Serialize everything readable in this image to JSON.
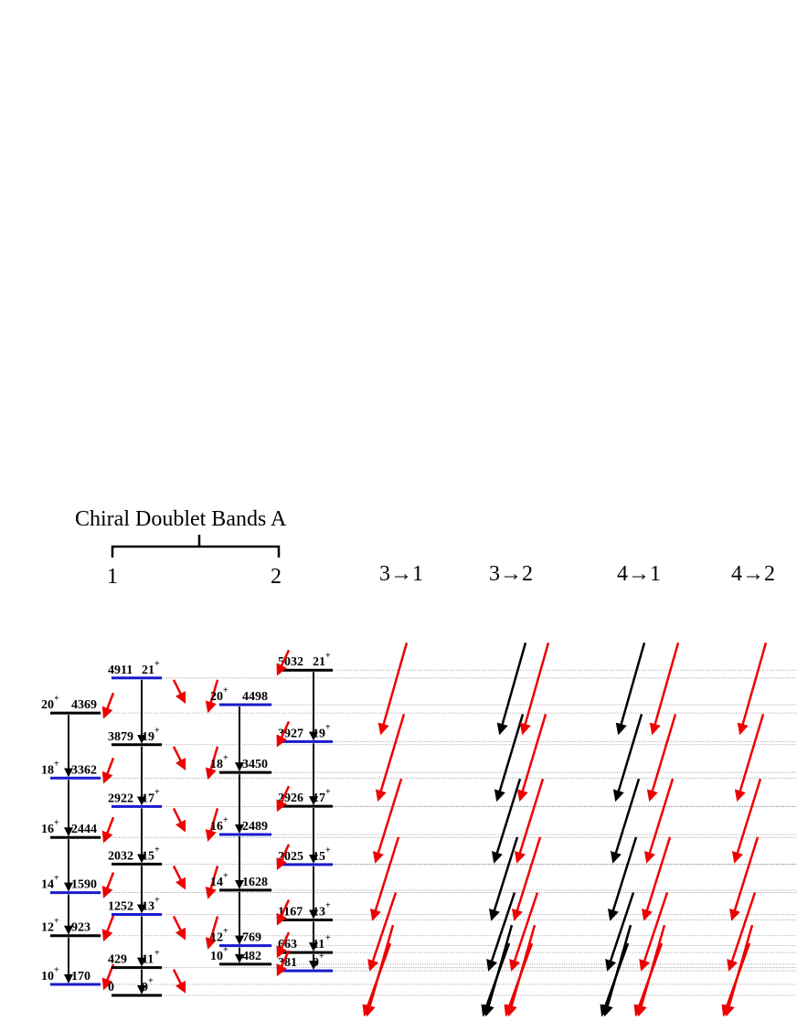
{
  "title": "Chiral Doublet Bands  A",
  "band_labels": [
    "1",
    "2"
  ],
  "transition_headers": [
    "3→1",
    "3→2",
    "4→1",
    "4→2"
  ],
  "bands": [
    {
      "levels": [
        {
          "spin": "20",
          "parity": "+",
          "energy": "4369"
        },
        {
          "spin": "18",
          "parity": "+",
          "energy": "3362"
        },
        {
          "spin": "16",
          "parity": "+",
          "energy": "2444"
        },
        {
          "spin": "14",
          "parity": "+",
          "energy": "1590"
        },
        {
          "spin": "12",
          "parity": "+",
          "energy": "923"
        },
        {
          "spin": "10",
          "parity": "+",
          "energy": "170"
        }
      ]
    },
    {
      "levels": [
        {
          "spin": "21",
          "parity": "+",
          "energy": "4911"
        },
        {
          "spin": "19",
          "parity": "+",
          "energy": "3879"
        },
        {
          "spin": "17",
          "parity": "+",
          "energy": "2922"
        },
        {
          "spin": "15",
          "parity": "+",
          "energy": "2032"
        },
        {
          "spin": "13",
          "parity": "+",
          "energy": "1252"
        },
        {
          "spin": "11",
          "parity": "+",
          "energy": "429"
        },
        {
          "spin": "9",
          "parity": "+",
          "energy": "0"
        }
      ]
    },
    {
      "levels": [
        {
          "spin": "20",
          "parity": "+",
          "energy": "4498"
        },
        {
          "spin": "18",
          "parity": "+",
          "energy": "3450"
        },
        {
          "spin": "16",
          "parity": "+",
          "energy": "2489"
        },
        {
          "spin": "14",
          "parity": "+",
          "energy": "1628"
        },
        {
          "spin": "12",
          "parity": "+",
          "energy": "769"
        },
        {
          "spin": "10",
          "parity": "+",
          "energy": "482"
        }
      ]
    },
    {
      "levels": [
        {
          "spin": "21",
          "parity": "+",
          "energy": "5032"
        },
        {
          "spin": "19",
          "parity": "+",
          "energy": "3927"
        },
        {
          "spin": "17",
          "parity": "+",
          "energy": "2926"
        },
        {
          "spin": "15",
          "parity": "+",
          "energy": "2025"
        },
        {
          "spin": "13",
          "parity": "+",
          "energy": "1167"
        },
        {
          "spin": "11",
          "parity": "+",
          "energy": "663"
        },
        {
          "spin": "9",
          "parity": "+",
          "energy": "381"
        }
      ]
    }
  ]
}
